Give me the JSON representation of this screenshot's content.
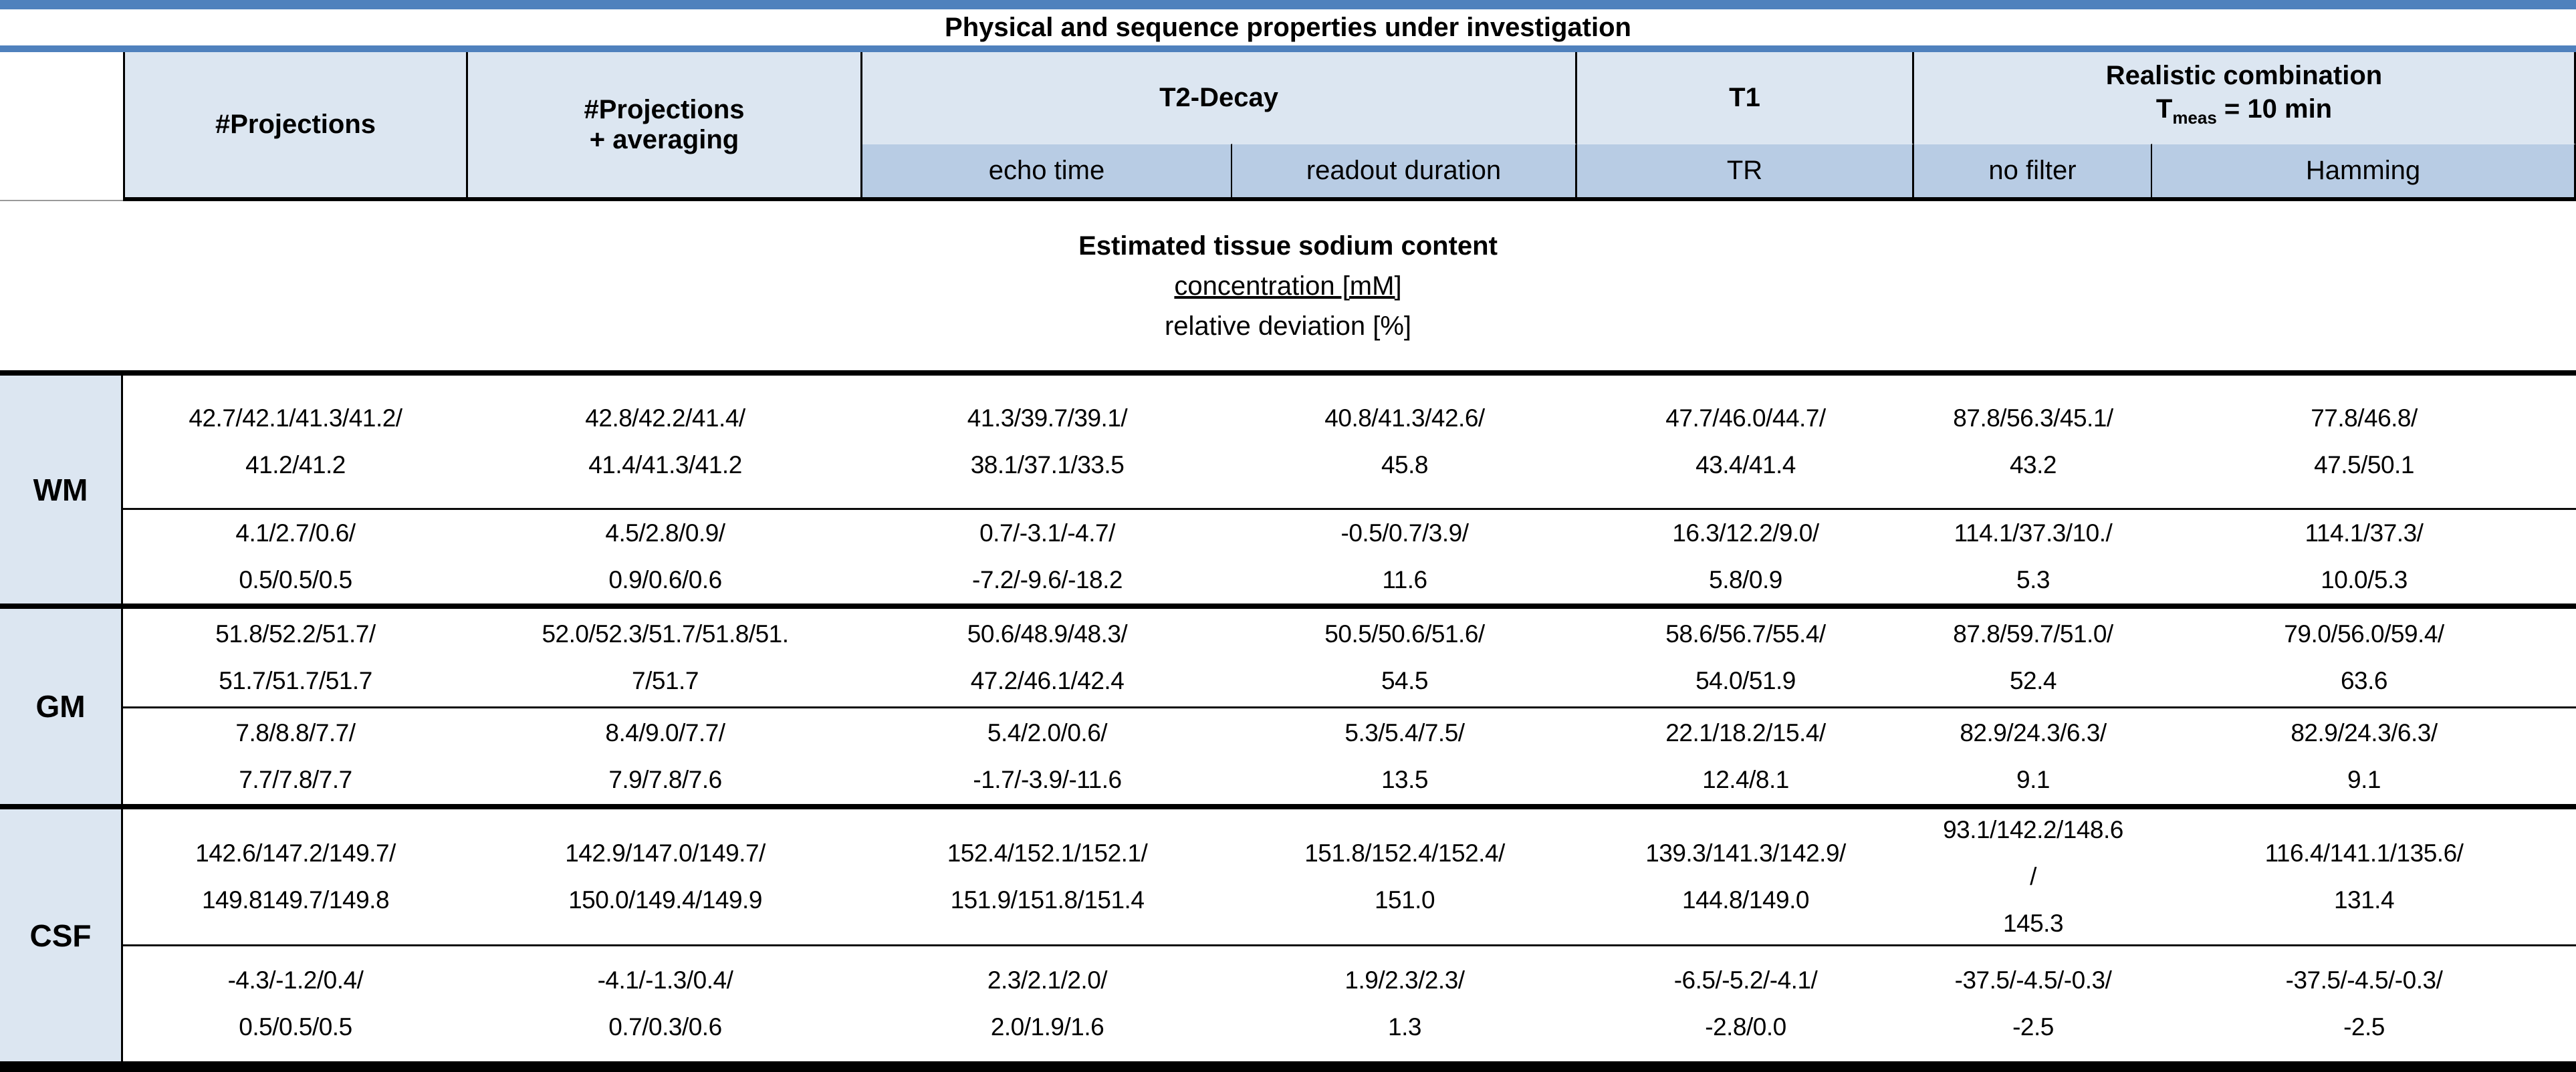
{
  "title": "Physical and sequence properties under investigation",
  "header": {
    "col_projections": "#Projections",
    "col_projections_avg": "#Projections\n+ averaging",
    "group_t2": "T2-Decay",
    "sub_echo": "echo time",
    "sub_readout": "readout duration",
    "group_t1": "T1",
    "sub_tr": "TR",
    "group_realistic_line1": "Realistic combination",
    "tmeas_prefix": "T",
    "tmeas_sub": "meas",
    "tmeas_suffix": " = 10 min",
    "sub_nofilter": "no filter",
    "sub_hamming": "Hamming"
  },
  "mid": {
    "line1": "Estimated tissue sodium content",
    "line2": "concentration [mM]",
    "line3": "relative deviation [%]"
  },
  "colors": {
    "accent_blue": "#4f81bd",
    "header_light": "#dce6f1",
    "header_dark": "#b8cce4",
    "label_fill": "#dce6f1"
  },
  "body": {
    "tissues": [
      {
        "label": "WM",
        "conc": {
          "proj": "42.7/42.1/41.3/41.2/\n41.2/41.2",
          "projavg": "42.8/42.2/41.4/\n41.4/41.3/41.2",
          "echo": "41.3/39.7/39.1/\n38.1/37.1/33.5",
          "readout": "40.8/41.3/42.6/\n45.8",
          "tr": "47.7/46.0/44.7/\n43.4/41.4",
          "nofilter": "87.8/56.3/45.1/\n43.2",
          "hamming": "77.8/46.8/\n47.5/50.1"
        },
        "dev": {
          "proj": "4.1/2.7/0.6/\n0.5/0.5/0.5",
          "projavg": "4.5/2.8/0.9/\n0.9/0.6/0.6",
          "echo": "0.7/-3.1/-4.7/\n-7.2/-9.6/-18.2",
          "readout": "-0.5/0.7/3.9/\n11.6",
          "tr": "16.3/12.2/9.0/\n5.8/0.9",
          "nofilter": "114.1/37.3/10./\n5.3",
          "hamming": "114.1/37.3/\n10.0/5.3"
        }
      },
      {
        "label": "GM",
        "conc": {
          "proj": "51.8/52.2/51.7/\n51.7/51.7/51.7",
          "projavg": "52.0/52.3/51.7/51.8/51.\n7/51.7",
          "echo": "50.6/48.9/48.3/\n47.2/46.1/42.4",
          "readout": "50.5/50.6/51.6/\n54.5",
          "tr": "58.6/56.7/55.4/\n54.0/51.9",
          "nofilter": "87.8/59.7/51.0/\n52.4",
          "hamming": "79.0/56.0/59.4/\n63.6"
        },
        "dev": {
          "proj": "7.8/8.8/7.7/\n7.7/7.8/7.7",
          "projavg": "8.4/9.0/7.7/\n7.9/7.8/7.6",
          "echo": "5.4/2.0/0.6/\n-1.7/-3.9/-11.6",
          "readout": "5.3/5.4/7.5/\n13.5",
          "tr": "22.1/18.2/15.4/\n12.4/8.1",
          "nofilter": "82.9/24.3/6.3/\n9.1",
          "hamming": "82.9/24.3/6.3/\n9.1"
        }
      },
      {
        "label": "CSF",
        "conc": {
          "proj": "142.6/147.2/149.7/\n149.8149.7/149.8",
          "projavg": "142.9/147.0/149.7/\n150.0/149.4/149.9",
          "echo": "152.4/152.1/152.1/\n151.9/151.8/151.4",
          "readout": "151.8/152.4/152.4/\n151.0",
          "tr": "139.3/141.3/142.9/\n144.8/149.0",
          "nofilter": "93.1/142.2/148.6\n/\n145.3",
          "hamming": "116.4/141.1/135.6/\n131.4"
        },
        "dev": {
          "proj": "-4.3/-1.2/0.4/\n0.5/0.5/0.5",
          "projavg": "-4.1/-1.3/0.4/\n0.7/0.3/0.6",
          "echo": "2.3/2.1/2.0/\n2.0/1.9/1.6",
          "readout": "1.9/2.3/2.3/\n1.3",
          "tr": "-6.5/-5.2/-4.1/\n-2.8/0.0",
          "nofilter": "-37.5/-4.5/-0.3/\n-2.5",
          "hamming": "-37.5/-4.5/-0.3/\n-2.5"
        }
      }
    ]
  }
}
